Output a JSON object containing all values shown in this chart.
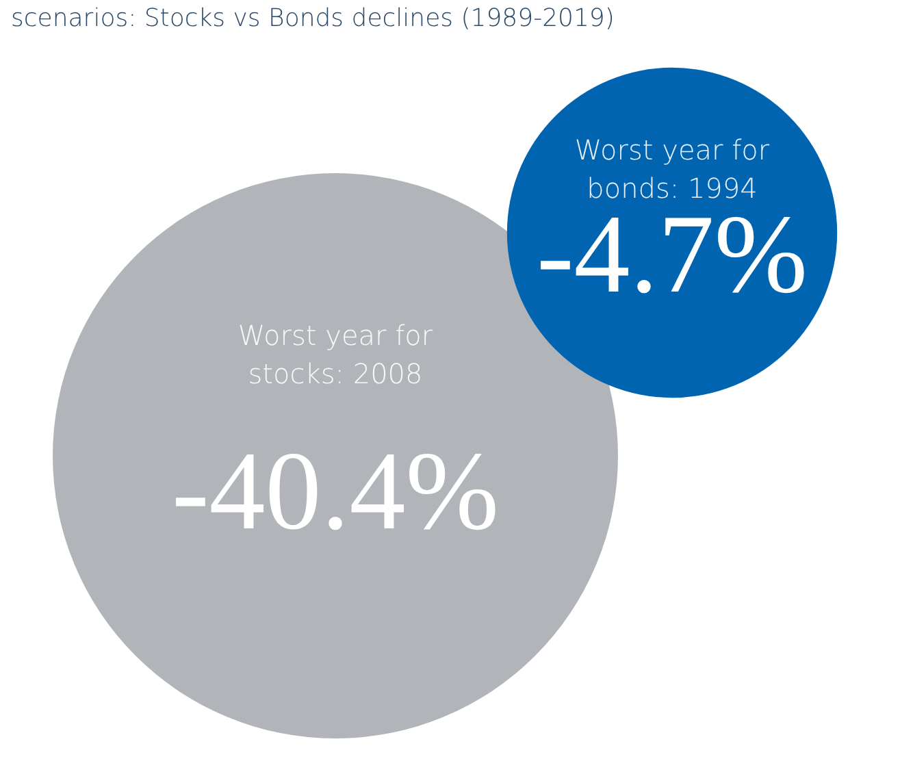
{
  "chart_data": {
    "type": "other",
    "title": "scenarios: Stocks vs Bonds declines (1989-2019)",
    "categories": [
      "Worst year for stocks: 2008",
      "Worst year for bonds: 1994"
    ],
    "values": [
      -40.4,
      -4.7
    ],
    "value_labels": [
      "-40.4%",
      "-4.7%"
    ],
    "colors": [
      "#b1b5ba",
      "#0064b0"
    ]
  }
}
